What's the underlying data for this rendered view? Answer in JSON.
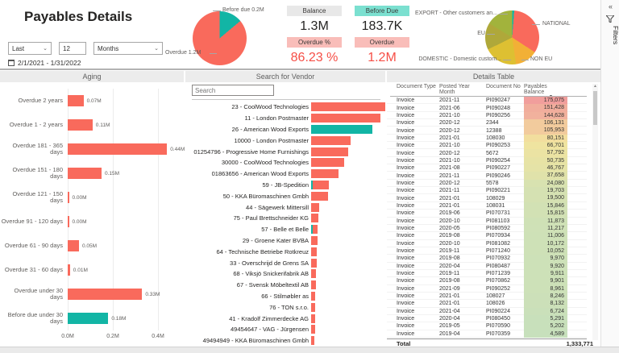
{
  "icons": {
    "chevron": "⌄",
    "collapse": "«",
    "sort_desc": "▼",
    "scroll_up": "▲"
  },
  "colors": {
    "red": "#F96A5C",
    "teal": "#12B5A5",
    "orange": "#F2B036",
    "mustard": "#DDC032",
    "olive": "#AFA83A",
    "yellowgreen": "#A2B33C",
    "value_red": "#F64E46",
    "card_teal": "#7BE0D0",
    "card_pink": "#F9BDB9",
    "card_gray": "#E8E8E8"
  },
  "header": {
    "title": "Payables Details",
    "period_mode": "Last",
    "period_count": "12",
    "period_unit": "Months",
    "date_range": "2/1/2021 - 1/31/2022"
  },
  "cards": {
    "balance": {
      "label": "Balance",
      "value": "1.3M"
    },
    "before_due": {
      "label": "Before Due",
      "value": "183.7K"
    },
    "overdue_pct": {
      "label": "Overdue %",
      "value": "86.23 %"
    },
    "overdue": {
      "label": "Overdue",
      "value": "1.2M"
    }
  },
  "overdue_pie": {
    "type": "pie",
    "slices": [
      {
        "label": "Before due 0.2M",
        "color_key": "teal",
        "fraction": 0.139
      },
      {
        "label": "Overdue 1.2M",
        "color_key": "red",
        "fraction": 0.861
      }
    ]
  },
  "customer_pie": {
    "type": "pie",
    "slices": [
      {
        "label": "",
        "color_key": "teal",
        "fraction": 0.012
      },
      {
        "label": "NATIONAL",
        "color_key": "red",
        "fraction": 0.33
      },
      {
        "label": "NON EU",
        "color_key": "orange",
        "fraction": 0.135
      },
      {
        "label": "DOMESTIC - Domestic custom...",
        "color_key": "mustard",
        "fraction": 0.2
      },
      {
        "label": "EU",
        "color_key": "olive",
        "fraction": 0.16
      },
      {
        "label": "EXPORT - Other customers an...",
        "color_key": "yellowgreen",
        "fraction": 0.163
      }
    ]
  },
  "filters_pane": {
    "label": "Filters"
  },
  "aging": {
    "title": "Aging",
    "type": "bar",
    "x_ticks": [
      "0.0M",
      "0.2M",
      "0.4M"
    ],
    "rows": [
      {
        "label": "Overdue 2 years",
        "value": 0.07,
        "value_label": "0.07M",
        "color_key": "red"
      },
      {
        "label": "Overdue 1 - 2 years",
        "value": 0.11,
        "value_label": "0.11M",
        "color_key": "red"
      },
      {
        "label": "Overdue 181 - 365 days",
        "value": 0.44,
        "value_label": "0.44M",
        "color_key": "red"
      },
      {
        "label": "Overdue 151 - 180 days",
        "value": 0.15,
        "value_label": "0.15M",
        "color_key": "red"
      },
      {
        "label": "Overdue 121 - 150 days",
        "value": 0.0,
        "value_label": "0.00M",
        "color_key": "red"
      },
      {
        "label": "Overdue 91 - 120 days",
        "value": 0.0,
        "value_label": "0.00M",
        "color_key": "red"
      },
      {
        "label": "Overdue 61 - 90 days",
        "value": 0.05,
        "value_label": "0.05M",
        "color_key": "red"
      },
      {
        "label": "Overdue 31 - 60 days",
        "value": 0.01,
        "value_label": "0.01M",
        "color_key": "red"
      },
      {
        "label": "Overdue under 30 days",
        "value": 0.33,
        "value_label": "0.33M",
        "color_key": "red"
      },
      {
        "label": "Before due under 30 days",
        "value": 0.18,
        "value_label": "0.18M",
        "color_key": "teal"
      }
    ]
  },
  "vendor": {
    "title": "Search for Vendor",
    "type": "bar",
    "search_placeholder": "Search",
    "rows": [
      {
        "label": "23 - CoolWood Technologies",
        "value": 92,
        "color_key": "red"
      },
      {
        "label": "11 - London Postmaster",
        "value": 86,
        "color_key": "red"
      },
      {
        "label": "26 - American Wood Exports",
        "value": 76,
        "color_key": "teal"
      },
      {
        "label": "10000 - London Postmaster",
        "value": 49,
        "color_key": "red"
      },
      {
        "label": "01254796 - Progressive Home Furnishings",
        "value": 46,
        "color_key": "red"
      },
      {
        "label": "30000 - CoolWood Technologies",
        "value": 41,
        "color_key": "red"
      },
      {
        "label": "01863656 - American Wood Exports",
        "value": 34,
        "color_key": "red"
      },
      {
        "label": "59 - JB-Spedition",
        "value": 22,
        "color_key": "red",
        "sliver": true
      },
      {
        "label": "50 - KKA Büromaschinen Gmbh",
        "value": 21,
        "color_key": "red"
      },
      {
        "label": "44 - Sägewerk Mittersill",
        "value": 10,
        "color_key": "red"
      },
      {
        "label": "75 - Paul Brettschneider KG",
        "value": 9,
        "color_key": "red"
      },
      {
        "label": "57 - Belle et Belle",
        "value": 8,
        "color_key": "red",
        "sliver": true
      },
      {
        "label": "29 - Groene Kater BVBA",
        "value": 8,
        "color_key": "red"
      },
      {
        "label": "64 - Technische Betriebe Rotkreuz",
        "value": 7,
        "color_key": "red"
      },
      {
        "label": "33 - Overschrijd de Grens SA",
        "value": 7,
        "color_key": "red"
      },
      {
        "label": "68 - Viksjö Snickerifabrik AB",
        "value": 6,
        "color_key": "red"
      },
      {
        "label": "67 - Svensk Möbeltextil AB",
        "value": 6,
        "color_key": "red"
      },
      {
        "label": "66 - Stilmøbler as",
        "value": 5,
        "color_key": "red"
      },
      {
        "label": "76 - TON s.r.o.",
        "value": 5,
        "color_key": "red"
      },
      {
        "label": "41 - Kradolf Zimmerdecke AG",
        "value": 5,
        "color_key": "red"
      },
      {
        "label": "49454647 - VAG - Jürgensen",
        "value": 5,
        "color_key": "red"
      },
      {
        "label": "49494949 - KKA Büromaschinen Gmbh",
        "value": 4,
        "color_key": "red"
      }
    ]
  },
  "details": {
    "title": "Details Table",
    "columns": [
      "Document Type",
      "Posted Year Month",
      "Document No",
      "Payables Balance"
    ],
    "rows": [
      [
        "Invoice",
        "2021-11",
        "PI090247",
        "175,075"
      ],
      [
        "Invoice",
        "2021-06",
        "PI090248",
        "151,428"
      ],
      [
        "Invoice",
        "2021-10",
        "PI090256",
        "144,628"
      ],
      [
        "Invoice",
        "2020-12",
        "2344",
        "106,131"
      ],
      [
        "Invoice",
        "2020-12",
        "12388",
        "105,953"
      ],
      [
        "Invoice",
        "2021-01",
        "108030",
        "80,151"
      ],
      [
        "Invoice",
        "2021-10",
        "PI090253",
        "66,701"
      ],
      [
        "Invoice",
        "2020-12",
        "5672",
        "57,792"
      ],
      [
        "Invoice",
        "2021-10",
        "PI090254",
        "50,735"
      ],
      [
        "Invoice",
        "2021-08",
        "PI090227",
        "46,767"
      ],
      [
        "Invoice",
        "2021-11",
        "PI090246",
        "37,658"
      ],
      [
        "Invoice",
        "2020-12",
        "5578",
        "24,080"
      ],
      [
        "Invoice",
        "2021-11",
        "PI090221",
        "19,703"
      ],
      [
        "Invoice",
        "2021-01",
        "108029",
        "19,500"
      ],
      [
        "Invoice",
        "2021-01",
        "108031",
        "15,846"
      ],
      [
        "Invoice",
        "2019-06",
        "PI070731",
        "15,815"
      ],
      [
        "Invoice",
        "2020-10",
        "PI081103",
        "11,873"
      ],
      [
        "Invoice",
        "2020-05",
        "PI080592",
        "11,217"
      ],
      [
        "Invoice",
        "2019-08",
        "PI070934",
        "11,006"
      ],
      [
        "Invoice",
        "2020-10",
        "PI081082",
        "10,172"
      ],
      [
        "Invoice",
        "2019-11",
        "PI071240",
        "10,052"
      ],
      [
        "Invoice",
        "2019-08",
        "PI070932",
        "9,970"
      ],
      [
        "Invoice",
        "2020-04",
        "PI080487",
        "9,920"
      ],
      [
        "Invoice",
        "2019-11",
        "PI071239",
        "9,911"
      ],
      [
        "Invoice",
        "2019-08",
        "PI070862",
        "9,901"
      ],
      [
        "Invoice",
        "2021-09",
        "PI090252",
        "8,961"
      ],
      [
        "Invoice",
        "2021-01",
        "108027",
        "8,246"
      ],
      [
        "Invoice",
        "2021-01",
        "108026",
        "8,132"
      ],
      [
        "Invoice",
        "2021-04",
        "PI090224",
        "6,724"
      ],
      [
        "Invoice",
        "2020-04",
        "PI080450",
        "5,291"
      ],
      [
        "Invoice",
        "2019-05",
        "PI070590",
        "5,202"
      ],
      [
        "Invoice",
        "2019-04",
        "PI070359",
        "4,589"
      ]
    ],
    "total_label": "Total",
    "total_value": "1,333,771"
  }
}
